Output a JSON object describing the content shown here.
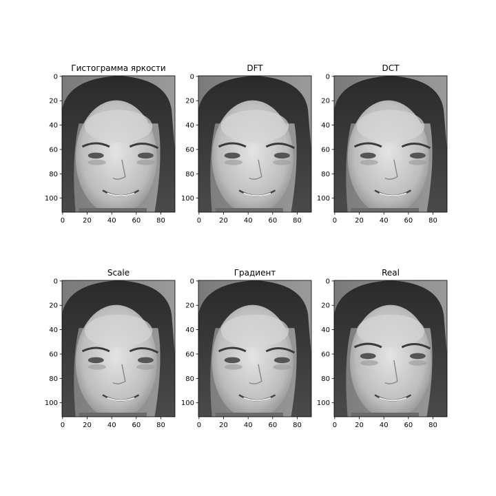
{
  "chart_data": [
    {
      "type": "image",
      "title": "Гистограмма яркости",
      "xticks": [
        "0",
        "20",
        "40",
        "60",
        "80"
      ],
      "yticks": [
        "0",
        "20",
        "40",
        "60",
        "80",
        "100"
      ],
      "xlim": [
        0,
        92
      ],
      "ylim": [
        112,
        0
      ],
      "variant": "processed"
    },
    {
      "type": "image",
      "title": "DFT",
      "xticks": [
        "0",
        "20",
        "40",
        "60",
        "80"
      ],
      "yticks": [
        "0",
        "20",
        "40",
        "60",
        "80",
        "100"
      ],
      "xlim": [
        0,
        92
      ],
      "ylim": [
        112,
        0
      ],
      "variant": "processed"
    },
    {
      "type": "image",
      "title": "DCT",
      "xticks": [
        "0",
        "20",
        "40",
        "60",
        "80"
      ],
      "yticks": [
        "0",
        "20",
        "40",
        "60",
        "80",
        "100"
      ],
      "xlim": [
        0,
        92
      ],
      "ylim": [
        112,
        0
      ],
      "variant": "processed"
    },
    {
      "type": "image",
      "title": "Scale",
      "xticks": [
        "0",
        "20",
        "40",
        "60",
        "80"
      ],
      "yticks": [
        "0",
        "20",
        "40",
        "60",
        "80",
        "100"
      ],
      "xlim": [
        0,
        92
      ],
      "ylim": [
        112,
        0
      ],
      "variant": "processed"
    },
    {
      "type": "image",
      "title": "Градиент",
      "xticks": [
        "0",
        "20",
        "40",
        "60",
        "80"
      ],
      "yticks": [
        "0",
        "20",
        "40",
        "60",
        "80",
        "100"
      ],
      "xlim": [
        0,
        92
      ],
      "ylim": [
        112,
        0
      ],
      "variant": "processed"
    },
    {
      "type": "image",
      "title": "Real",
      "xticks": [
        "0",
        "20",
        "40",
        "60",
        "80"
      ],
      "yticks": [
        "0",
        "20",
        "40",
        "60",
        "80",
        "100"
      ],
      "xlim": [
        0,
        92
      ],
      "ylim": [
        112,
        0
      ],
      "variant": "real"
    }
  ],
  "colors": {
    "background": "#ffffff",
    "axis": "#000000",
    "image_bg": "#8c8c8c"
  }
}
